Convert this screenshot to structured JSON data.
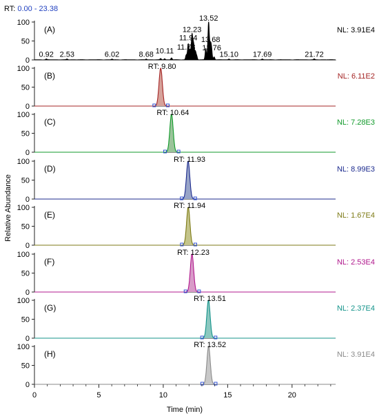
{
  "rt_range": {
    "label": "RT:",
    "value": "0.00 - 23.38"
  },
  "xlabel": "Time (min)",
  "ylabel": "Relative Abundance",
  "axis_color": "#222222",
  "x_ticks": [
    "0",
    "5",
    "10",
    "15",
    "20"
  ],
  "y_ticks": [
    "0",
    "50",
    "100"
  ],
  "chart_data": {
    "type": "line",
    "xlabel": "Time (min)",
    "ylabel": "Relative Abundance",
    "xlim": [
      0,
      23.38
    ],
    "ylim": [
      0,
      100
    ],
    "grid": false,
    "panels": [
      {
        "label": "(A)",
        "nl": "NL: 3.91E4",
        "color": "#000000",
        "fill": "#000000",
        "peak_labels": [
          {
            "text": "0.92",
            "x": 0.92,
            "y": 5
          },
          {
            "text": "2.53",
            "x": 2.53,
            "y": 5
          },
          {
            "text": "6.02",
            "x": 6.02,
            "y": 5
          },
          {
            "text": "8.68",
            "x": 8.68,
            "y": 5
          },
          {
            "text": "10.11",
            "x": 10.11,
            "y": 14
          },
          {
            "text": "11.78",
            "x": 11.78,
            "y": 24
          },
          {
            "text": "11.94",
            "x": 11.94,
            "y": 48
          },
          {
            "text": "12.23",
            "x": 12.23,
            "y": 70
          },
          {
            "text": "13.52",
            "x": 13.52,
            "y": 100
          },
          {
            "text": "13.68",
            "x": 13.68,
            "y": 44
          },
          {
            "text": "13.76",
            "x": 13.76,
            "y": 22
          },
          {
            "text": "15.10",
            "x": 15.1,
            "y": 5
          },
          {
            "text": "17.69",
            "x": 17.69,
            "y": 5
          },
          {
            "text": "21.72",
            "x": 21.72,
            "y": 5
          }
        ],
        "peaks": [
          {
            "x": 0.92,
            "y": 2
          },
          {
            "x": 2.53,
            "y": 2
          },
          {
            "x": 6.02,
            "y": 2
          },
          {
            "x": 8.68,
            "y": 2
          },
          {
            "x": 9.8,
            "y": 3
          },
          {
            "x": 10.11,
            "y": 3
          },
          {
            "x": 10.64,
            "y": 5
          },
          {
            "x": 11.78,
            "y": 12
          },
          {
            "x": 11.94,
            "y": 42
          },
          {
            "x": 12.08,
            "y": 22
          },
          {
            "x": 12.23,
            "y": 65
          },
          {
            "x": 12.36,
            "y": 40
          },
          {
            "x": 12.5,
            "y": 20
          },
          {
            "x": 12.6,
            "y": 10
          },
          {
            "x": 13.3,
            "y": 30
          },
          {
            "x": 13.52,
            "y": 100
          },
          {
            "x": 13.68,
            "y": 38
          },
          {
            "x": 13.76,
            "y": 18
          },
          {
            "x": 13.95,
            "y": 8
          },
          {
            "x": 15.1,
            "y": 2
          },
          {
            "x": 17.69,
            "y": 2
          },
          {
            "x": 21.72,
            "y": 2
          }
        ]
      },
      {
        "label": "(B)",
        "nl": "NL: 6.11E2",
        "color": "#a42323",
        "fill": "#d6a29a",
        "rt": "RT: 9.80",
        "peak_x": 9.8,
        "peak_y": 100
      },
      {
        "label": "(C)",
        "nl": "NL: 7.28E3",
        "color": "#109a2a",
        "fill": "#9ac49a",
        "rt": "RT: 10.64",
        "peak_x": 10.64,
        "peak_y": 100
      },
      {
        "label": "(D)",
        "nl": "NL: 8.99E3",
        "color": "#1b2a8e",
        "fill": "#98a4c8",
        "rt": "RT: 11.93",
        "peak_x": 11.93,
        "peak_y": 100
      },
      {
        "label": "(E)",
        "nl": "NL: 1.67E4",
        "color": "#7d7a15",
        "fill": "#c4c48a",
        "rt": "RT: 11.94",
        "peak_x": 11.94,
        "peak_y": 100
      },
      {
        "label": "(F)",
        "nl": "NL: 2.53E4",
        "color": "#b0178c",
        "fill": "#d89ac8",
        "rt": "RT: 12.23",
        "peak_x": 12.23,
        "peak_y": 100
      },
      {
        "label": "(G)",
        "nl": "NL: 2.37E4",
        "color": "#13938a",
        "fill": "#8cc8c0",
        "rt": "RT: 13.51",
        "peak_x": 13.51,
        "peak_y": 100
      },
      {
        "label": "(H)",
        "nl": "NL: 3.91E4",
        "color": "#8a8a8a",
        "fill": "#c8c8c8",
        "rt": "RT: 13.52",
        "peak_x": 13.52,
        "peak_y": 100
      }
    ]
  }
}
